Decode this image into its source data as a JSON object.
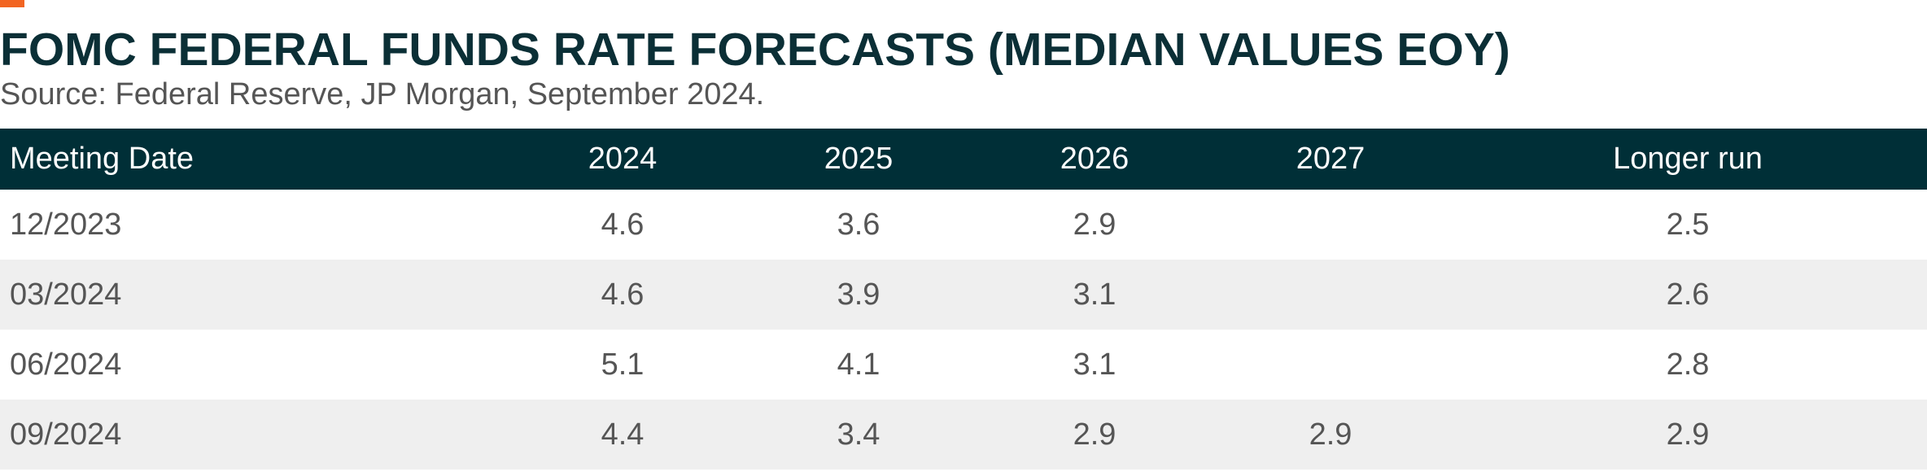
{
  "title": "FOMC FEDERAL FUNDS RATE FORECASTS (MEDIAN VALUES EOY)",
  "subtitle": "Source: Federal Reserve, JP Morgan, September 2024.",
  "colors": {
    "accent": "#f26522",
    "header_bg": "#002f37",
    "title_text": "#0b2f36",
    "alt_row": "#efefef"
  },
  "chart_data": {
    "type": "table",
    "title": "FOMC FEDERAL FUNDS RATE FORECASTS (MEDIAN VALUES EOY)",
    "columns": [
      "Meeting Date",
      "2024",
      "2025",
      "2026",
      "2027",
      "Longer run"
    ],
    "rows": [
      [
        "12/2023",
        "4.6",
        "3.6",
        "2.9",
        "",
        "2.5"
      ],
      [
        "03/2024",
        "4.6",
        "3.9",
        "3.1",
        "",
        "2.6"
      ],
      [
        "06/2024",
        "5.1",
        "4.1",
        "3.1",
        "",
        "2.8"
      ],
      [
        "09/2024",
        "4.4",
        "3.4",
        "2.9",
        "2.9",
        "2.9"
      ]
    ]
  }
}
